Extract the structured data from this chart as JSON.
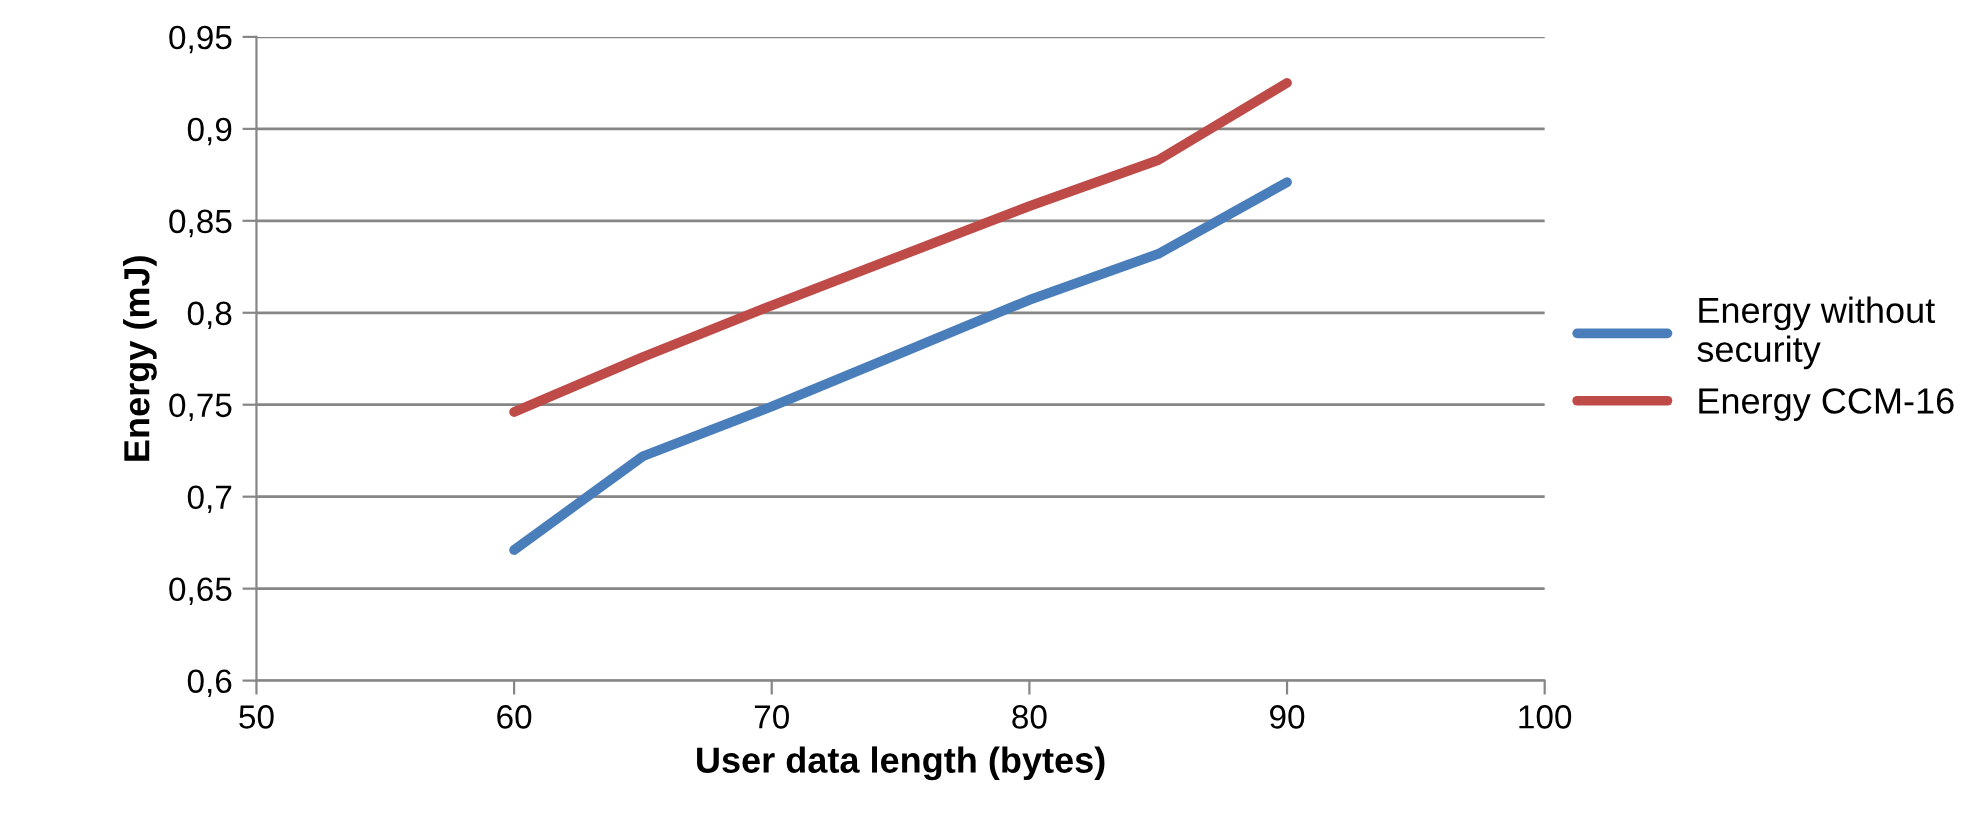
{
  "chart_data": {
    "type": "line",
    "xlabel": "User data length (bytes)",
    "ylabel": "Energy (mJ)",
    "xlim": [
      50,
      100
    ],
    "xticks": [
      50,
      60,
      70,
      80,
      90,
      100
    ],
    "ylim": [
      0.6,
      0.95
    ],
    "yticks": [
      {
        "value": 0.6,
        "label": "0,6"
      },
      {
        "value": 0.65,
        "label": "0,65"
      },
      {
        "value": 0.7,
        "label": "0,7"
      },
      {
        "value": 0.75,
        "label": "0,75"
      },
      {
        "value": 0.8,
        "label": "0,8"
      },
      {
        "value": 0.85,
        "label": "0,85"
      },
      {
        "value": 0.9,
        "label": "0,9"
      },
      {
        "value": 0.95,
        "label": "0,95"
      }
    ],
    "grid": "y",
    "legend": "right",
    "marker": "none",
    "line_style": "solid",
    "x": [
      60,
      65,
      70,
      75,
      80,
      85,
      90
    ],
    "series": [
      {
        "name": "Energy without security",
        "color": "#4a7ebb",
        "values": [
          0.671,
          0.722,
          0.749,
          0.778,
          0.807,
          0.832,
          0.871
        ]
      },
      {
        "name": "Energy CCM-16",
        "color": "#be4b48",
        "values": [
          0.746,
          0.776,
          0.804,
          0.831,
          0.858,
          0.883,
          0.925
        ]
      }
    ]
  }
}
